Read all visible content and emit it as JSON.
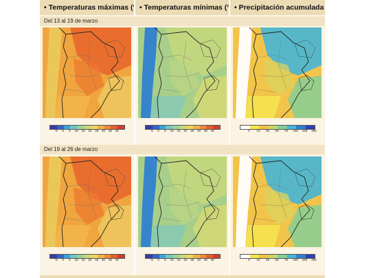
{
  "columns": [
    {
      "title": "• Temperaturas máximas (°C)",
      "kind": "tmax"
    },
    {
      "title": "• Temperaturas mínimas (°C)",
      "kind": "tmin"
    },
    {
      "title": "• Precipitación acumulada (mm)",
      "kind": "precip"
    }
  ],
  "periods": [
    {
      "label": "Del 13 al 19 de marzo"
    },
    {
      "label": "Del 19 al 26 de marzo"
    }
  ],
  "legends": {
    "temperature": {
      "ticks": [
        "-5",
        "0",
        "5",
        "10",
        "15",
        "20",
        "25",
        "30",
        "35",
        "40"
      ],
      "colors": [
        "#3b3aa6",
        "#2f67c9",
        "#3ea3dc",
        "#6fc7c9",
        "#9ad39a",
        "#c9d77a",
        "#efd65e",
        "#f2b04a",
        "#ee8a3a",
        "#e2602f",
        "#cf3e2a"
      ]
    },
    "precipitation": {
      "ticks": [
        "0",
        "10",
        "25",
        "50",
        "75",
        "100",
        "150",
        "200"
      ],
      "colors": [
        "#ffffff",
        "#f6e64e",
        "#f3c23f",
        "#c9d86a",
        "#7fcf9a",
        "#46b6d6",
        "#2f7fd0",
        "#2f3fb0"
      ]
    }
  },
  "map_fills": {
    "tmax": {
      "background": "#f0a53e",
      "north": "#e8682c",
      "center": "#ec7a30",
      "andes": "#e9c85a",
      "south": "#f2b64a",
      "coast": "#efca63"
    },
    "tmin": {
      "background": "#a8cf8a",
      "north": "#c4d67c",
      "center": "#bcd584",
      "andes": "#2f7fd0",
      "south": "#86c9b4",
      "coast": "#d7d872"
    },
    "precip": {
      "background": "#f2c44a",
      "north": "#46b6d6",
      "center": "#d9d35d",
      "andes": "#ffffff",
      "south": "#f6e64e",
      "coast": "#7fcf9a"
    }
  }
}
